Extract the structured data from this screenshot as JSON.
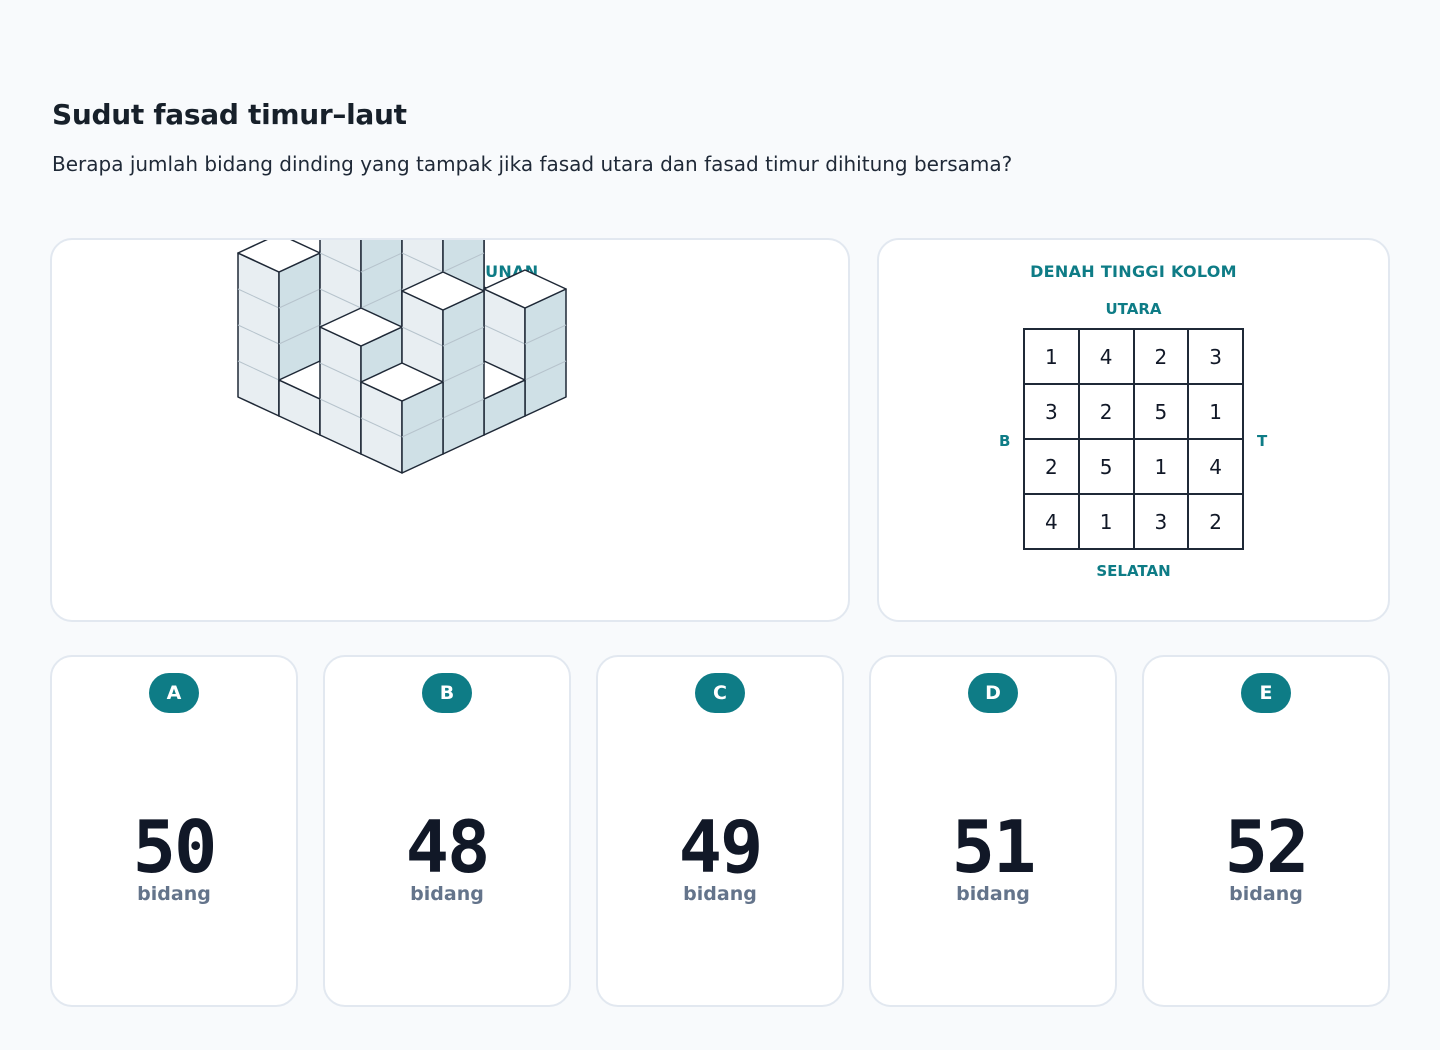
{
  "title": "Sudut fasad timur–laut",
  "question": "Berapa jumlah bidang dinding yang tampak jika fasad utara dan fasad timur dihitung bersama?",
  "model_panel": {
    "heading": "MODEL BANGUNAN"
  },
  "plan_panel": {
    "heading": "DENAH TINGGI KOLOM",
    "north": "UTARA",
    "south": "SELATAN",
    "west": "B",
    "east": "T",
    "grid": [
      [
        "1",
        "4",
        "2",
        "3"
      ],
      [
        "3",
        "2",
        "5",
        "1"
      ],
      [
        "2",
        "5",
        "1",
        "4"
      ],
      [
        "4",
        "1",
        "3",
        "2"
      ]
    ]
  },
  "options": [
    {
      "letter": "A",
      "value": "50",
      "unit": "bidang"
    },
    {
      "letter": "B",
      "value": "48",
      "unit": "bidang"
    },
    {
      "letter": "C",
      "value": "49",
      "unit": "bidang"
    },
    {
      "letter": "D",
      "value": "51",
      "unit": "bidang"
    },
    {
      "letter": "E",
      "value": "52",
      "unit": "bidang"
    }
  ],
  "colors": {
    "accent": "#0e7c86",
    "top_face": "#ffffff",
    "left_face": "#e8eef2",
    "right_face": "#cfe0e6",
    "edge": "#1f2937"
  }
}
